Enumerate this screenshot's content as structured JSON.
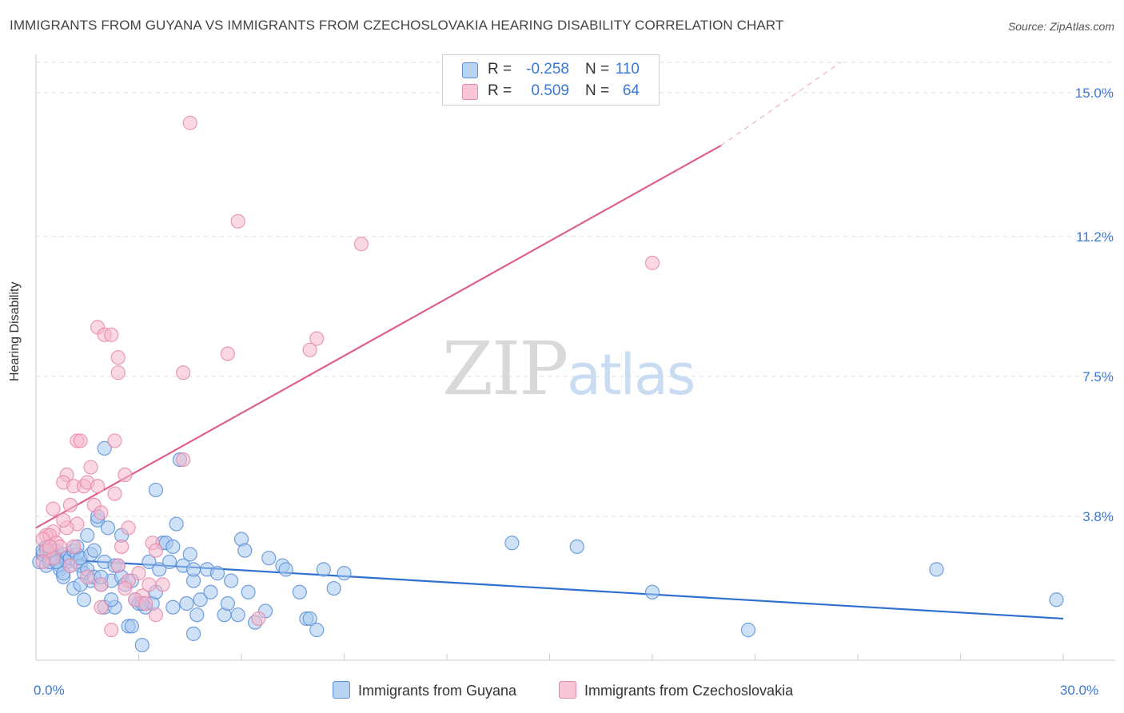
{
  "title": "IMMIGRANTS FROM GUYANA VS IMMIGRANTS FROM CZECHOSLOVAKIA HEARING DISABILITY CORRELATION CHART",
  "source": "Source: ZipAtlas.com",
  "watermark": {
    "zip": "ZIP",
    "atlas": "atlas"
  },
  "legend_top": [
    {
      "r_label": "R =",
      "r_value": "-0.258",
      "n_label": "N =",
      "n_value": "110"
    },
    {
      "r_label": "R =",
      "r_value": "0.509",
      "n_label": "N =",
      "n_value": "64"
    }
  ],
  "legend_bottom": [
    {
      "label": "Immigrants from Guyana"
    },
    {
      "label": "Immigrants from Czechoslovakia"
    }
  ],
  "colors": {
    "blue_fill": "#a8c8f0",
    "blue_stroke": "#5b8fd6",
    "blue_line": "#2f6fd0",
    "pink_fill": "#f5b8cc",
    "pink_stroke": "#e58aaa",
    "pink_line": "#e0608a",
    "axis_label": "#3a78d4",
    "grid": "#dddddd"
  },
  "chart_data": {
    "type": "scatter",
    "title": "IMMIGRANTS FROM GUYANA VS IMMIGRANTS FROM CZECHOSLOVAKIA HEARING DISABILITY CORRELATION CHART",
    "xlabel": "",
    "ylabel": "Hearing Disability",
    "xlim": [
      0,
      30
    ],
    "ylim": [
      0,
      15.8
    ],
    "x_tick_labels": [
      {
        "value": 0,
        "label": "0.0%"
      },
      {
        "value": 30,
        "label": "30.0%"
      }
    ],
    "y_ticks": [
      {
        "value": 3.8,
        "label": "3.8%"
      },
      {
        "value": 7.5,
        "label": "7.5%"
      },
      {
        "value": 11.2,
        "label": "11.2%"
      },
      {
        "value": 15.0,
        "label": "15.0%"
      }
    ],
    "series": [
      {
        "name": "Immigrants from Guyana",
        "color": "blue",
        "points": [
          [
            0.1,
            2.6
          ],
          [
            0.2,
            2.8
          ],
          [
            0.2,
            2.9
          ],
          [
            0.3,
            2.5
          ],
          [
            0.3,
            3.0
          ],
          [
            0.4,
            2.7
          ],
          [
            0.4,
            2.6
          ],
          [
            0.5,
            2.8
          ],
          [
            0.5,
            2.9
          ],
          [
            0.6,
            2.7
          ],
          [
            0.6,
            2.9
          ],
          [
            0.7,
            2.5
          ],
          [
            0.7,
            2.4
          ],
          [
            0.8,
            2.8
          ],
          [
            0.8,
            2.2
          ],
          [
            0.9,
            2.7
          ],
          [
            0.9,
            2.6
          ],
          [
            1.0,
            2.5
          ],
          [
            1.0,
            2.7
          ],
          [
            1.1,
            2.9
          ],
          [
            1.1,
            1.9
          ],
          [
            1.2,
            2.6
          ],
          [
            1.2,
            2.8
          ],
          [
            1.3,
            2.5
          ],
          [
            1.3,
            2.7
          ],
          [
            1.4,
            1.6
          ],
          [
            1.4,
            2.3
          ],
          [
            1.5,
            3.3
          ],
          [
            1.5,
            2.4
          ],
          [
            1.6,
            2.8
          ],
          [
            1.6,
            2.1
          ],
          [
            1.7,
            2.9
          ],
          [
            1.7,
            2.2
          ],
          [
            1.8,
            3.7
          ],
          [
            1.8,
            3.8
          ],
          [
            1.9,
            2.0
          ],
          [
            2.0,
            2.6
          ],
          [
            2.0,
            1.4
          ],
          [
            2.1,
            3.5
          ],
          [
            2.2,
            2.1
          ],
          [
            2.3,
            2.5
          ],
          [
            2.3,
            1.4
          ],
          [
            2.4,
            2.5
          ],
          [
            2.5,
            2.2
          ],
          [
            2.6,
            2.0
          ],
          [
            2.7,
            0.9
          ],
          [
            2.8,
            2.1
          ],
          [
            2.9,
            1.6
          ],
          [
            3.0,
            1.5
          ],
          [
            3.1,
            0.4
          ],
          [
            3.2,
            1.4
          ],
          [
            3.3,
            2.6
          ],
          [
            3.4,
            1.5
          ],
          [
            3.5,
            4.5
          ],
          [
            3.6,
            2.4
          ],
          [
            3.7,
            3.1
          ],
          [
            3.8,
            3.1
          ],
          [
            4.0,
            3.0
          ],
          [
            4.0,
            1.4
          ],
          [
            4.1,
            3.6
          ],
          [
            4.3,
            2.5
          ],
          [
            4.5,
            2.8
          ],
          [
            4.6,
            2.1
          ],
          [
            4.6,
            0.7
          ],
          [
            4.7,
            1.2
          ],
          [
            4.8,
            1.6
          ],
          [
            5.0,
            2.4
          ],
          [
            5.1,
            1.8
          ],
          [
            5.3,
            2.3
          ],
          [
            5.5,
            1.2
          ],
          [
            5.6,
            1.5
          ],
          [
            5.9,
            1.2
          ],
          [
            6.0,
            3.2
          ],
          [
            6.1,
            2.9
          ],
          [
            6.2,
            1.8
          ],
          [
            6.4,
            1.0
          ],
          [
            6.7,
            1.3
          ],
          [
            6.8,
            2.7
          ],
          [
            7.2,
            2.5
          ],
          [
            7.3,
            2.4
          ],
          [
            7.7,
            1.8
          ],
          [
            7.9,
            1.1
          ],
          [
            8.0,
            1.1
          ],
          [
            8.2,
            0.8
          ],
          [
            8.4,
            2.4
          ],
          [
            8.7,
            1.9
          ],
          [
            9.0,
            2.3
          ],
          [
            13.9,
            3.1
          ],
          [
            15.8,
            3.0
          ],
          [
            18.0,
            1.8
          ],
          [
            26.3,
            2.4
          ],
          [
            29.8,
            1.6
          ],
          [
            20.8,
            0.8
          ],
          [
            4.2,
            5.3
          ],
          [
            2.0,
            5.6
          ],
          [
            4.6,
            2.4
          ],
          [
            3.5,
            1.8
          ],
          [
            2.5,
            3.3
          ],
          [
            1.2,
            3.0
          ],
          [
            0.8,
            2.3
          ],
          [
            3.1,
            1.5
          ],
          [
            1.9,
            2.2
          ],
          [
            2.8,
            0.9
          ],
          [
            0.6,
            2.6
          ],
          [
            1.3,
            2.0
          ],
          [
            5.7,
            2.1
          ],
          [
            3.9,
            2.6
          ],
          [
            4.4,
            1.5
          ],
          [
            2.2,
            1.6
          ],
          [
            0.4,
            2.9
          ]
        ]
      },
      {
        "name": "Immigrants from Czechoslovakia",
        "color": "pink",
        "points": [
          [
            4.5,
            14.2
          ],
          [
            5.9,
            11.6
          ],
          [
            9.5,
            11.0
          ],
          [
            18.0,
            10.5
          ],
          [
            1.8,
            8.8
          ],
          [
            2.0,
            8.6
          ],
          [
            2.2,
            8.6
          ],
          [
            8.2,
            8.5
          ],
          [
            8.0,
            8.2
          ],
          [
            5.6,
            8.1
          ],
          [
            2.4,
            8.0
          ],
          [
            4.3,
            7.6
          ],
          [
            2.4,
            7.6
          ],
          [
            1.2,
            5.8
          ],
          [
            1.3,
            5.8
          ],
          [
            2.3,
            5.8
          ],
          [
            4.3,
            5.3
          ],
          [
            1.6,
            5.1
          ],
          [
            2.6,
            4.9
          ],
          [
            0.9,
            4.9
          ],
          [
            0.8,
            4.7
          ],
          [
            1.1,
            4.6
          ],
          [
            1.4,
            4.6
          ],
          [
            1.5,
            4.7
          ],
          [
            1.8,
            4.6
          ],
          [
            2.3,
            4.4
          ],
          [
            1.7,
            4.1
          ],
          [
            1.0,
            4.1
          ],
          [
            0.5,
            4.0
          ],
          [
            1.9,
            3.9
          ],
          [
            1.2,
            3.6
          ],
          [
            2.7,
            3.5
          ],
          [
            0.9,
            3.5
          ],
          [
            0.5,
            3.4
          ],
          [
            0.3,
            3.3
          ],
          [
            0.4,
            3.3
          ],
          [
            0.2,
            3.2
          ],
          [
            0.6,
            3.1
          ],
          [
            0.7,
            3.0
          ],
          [
            1.1,
            3.0
          ],
          [
            2.5,
            3.0
          ],
          [
            3.4,
            3.1
          ],
          [
            3.5,
            2.9
          ],
          [
            0.3,
            2.9
          ],
          [
            0.5,
            2.7
          ],
          [
            0.2,
            2.6
          ],
          [
            1.0,
            2.5
          ],
          [
            2.4,
            2.5
          ],
          [
            3.0,
            2.3
          ],
          [
            2.7,
            2.1
          ],
          [
            1.9,
            2.0
          ],
          [
            3.3,
            2.0
          ],
          [
            3.7,
            2.0
          ],
          [
            2.6,
            1.9
          ],
          [
            3.1,
            1.7
          ],
          [
            2.9,
            1.6
          ],
          [
            3.2,
            1.5
          ],
          [
            1.9,
            1.4
          ],
          [
            6.5,
            1.1
          ],
          [
            2.2,
            0.8
          ],
          [
            3.5,
            1.2
          ],
          [
            1.5,
            2.2
          ],
          [
            0.8,
            3.7
          ],
          [
            0.4,
            3.0
          ]
        ]
      }
    ],
    "trend_lines": [
      {
        "series": "Immigrants from Guyana",
        "x": [
          0,
          30
        ],
        "y": [
          2.7,
          1.1
        ],
        "style": "solid"
      },
      {
        "series": "Immigrants from Czechoslovakia",
        "x": [
          0,
          20.0
        ],
        "y": [
          3.5,
          13.6
        ],
        "style": "solid"
      },
      {
        "series": "Immigrants from Czechoslovakia",
        "x": [
          20.0,
          23.5
        ],
        "y": [
          13.6,
          15.8
        ],
        "style": "dashed"
      }
    ]
  }
}
